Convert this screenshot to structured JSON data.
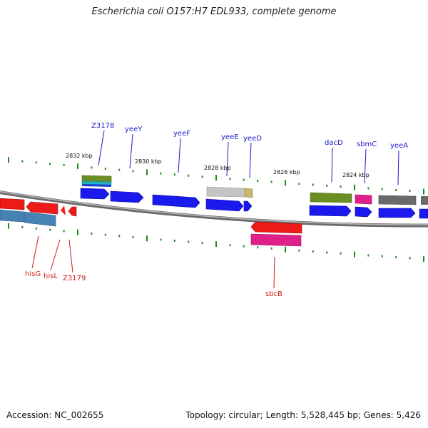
{
  "title": "Escherichia coli O157:H7 EDL933, complete genome",
  "footer": {
    "accession": "Accession: NC_002655",
    "summary": "Topology: circular; Length: 5,528,445 bp; Genes: 5,426"
  },
  "colors": {
    "backbone": "#8a8a8a",
    "tick": "#1f8a1f",
    "forward_label": "#1a1acc",
    "reverse_label": "#cc1a1a"
  },
  "scale": {
    "unit": "kbp",
    "labels": [
      "2832 kbp",
      "2830 kbp",
      "2828 kbp",
      "2826 kbp",
      "2824 kbp"
    ]
  },
  "genes": {
    "forward": [
      "Z3178",
      "yeeY",
      "yeeF",
      "yeeE",
      "yeeD",
      "dacD",
      "sbmC",
      "yeeA"
    ],
    "reverse": [
      "hisG",
      "hisL",
      "Z3179",
      "sbcB"
    ]
  }
}
